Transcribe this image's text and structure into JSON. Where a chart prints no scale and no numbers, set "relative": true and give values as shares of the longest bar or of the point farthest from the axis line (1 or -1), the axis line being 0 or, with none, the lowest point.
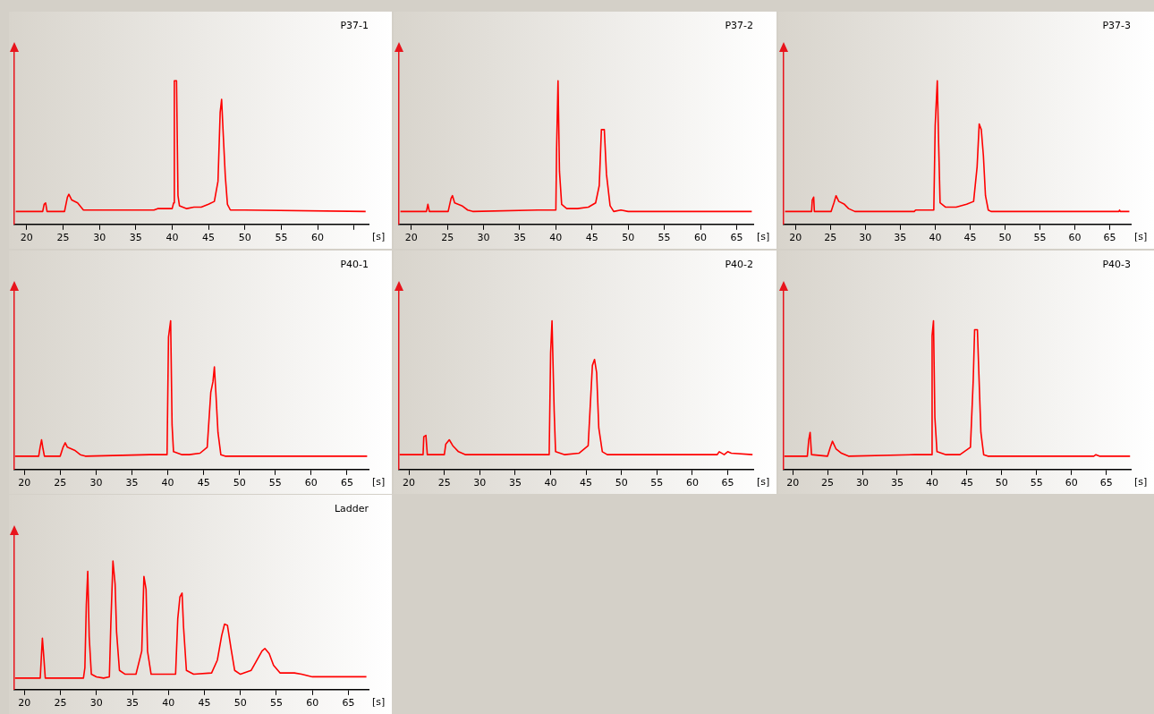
{
  "chart_data": [
    {
      "type": "line",
      "title": "P37-1",
      "xlabel": "[s]",
      "relative": true,
      "color": "#ff0000",
      "xlim": [
        18.3,
        67
      ],
      "xticks": [
        20,
        25,
        30,
        35,
        40,
        45,
        50,
        55,
        60,
        {
          "value": 65,
          "label": null
        }
      ],
      "x": [
        18.5,
        22.2,
        22.4,
        22.6,
        22.8,
        25.2,
        25.6,
        25.8,
        26.2,
        27,
        27.8,
        28.5,
        35.5,
        37.5,
        38,
        40,
        40.2,
        40.3,
        40.6,
        40.8,
        41,
        42,
        43,
        44,
        45,
        45.8,
        46.3,
        46.6,
        46.8,
        47,
        47.3,
        47.6,
        48,
        50,
        66.6
      ],
      "values": [
        0.09,
        0.09,
        0.14,
        0.15,
        0.09,
        0.09,
        0.19,
        0.21,
        0.17,
        0.15,
        0.1,
        0.1,
        0.1,
        0.1,
        0.11,
        0.11,
        0.15,
        1,
        1,
        0.2,
        0.13,
        0.11,
        0.12,
        0.12,
        0.14,
        0.16,
        0.3,
        0.78,
        0.87,
        0.65,
        0.34,
        0.14,
        0.1,
        0.1,
        0.09
      ]
    },
    {
      "type": "line",
      "title": "P37-2",
      "xlabel": "[s]",
      "relative": true,
      "color": "#ff0000",
      "xlim": [
        18.3,
        67.3
      ],
      "xticks": [
        20,
        25,
        30,
        35,
        40,
        45,
        50,
        55,
        60,
        65
      ],
      "x": [
        18.5,
        22.1,
        22.3,
        22.5,
        25.1,
        25.5,
        25.7,
        26,
        27,
        27.8,
        28.5,
        37.5,
        38.5,
        40,
        40.1,
        40.3,
        40.5,
        40.8,
        41.5,
        43,
        44.5,
        45.5,
        46,
        46.3,
        46.7,
        47,
        47.5,
        48,
        49,
        50,
        67.1
      ],
      "values": [
        0.09,
        0.09,
        0.14,
        0.09,
        0.09,
        0.18,
        0.2,
        0.15,
        0.13,
        0.1,
        0.09,
        0.1,
        0.1,
        0.1,
        0.52,
        1,
        0.37,
        0.14,
        0.11,
        0.11,
        0.12,
        0.15,
        0.27,
        0.66,
        0.66,
        0.35,
        0.13,
        0.09,
        0.1,
        0.09,
        0.09
      ]
    },
    {
      "type": "line",
      "title": "P37-3",
      "xlabel": "[s]",
      "relative": true,
      "color": "#ff0000",
      "xlim": [
        18.3,
        68
      ],
      "xticks": [
        20,
        25,
        30,
        35,
        40,
        45,
        50,
        55,
        60,
        65
      ],
      "x": [
        18.5,
        22.3,
        22.4,
        22.6,
        22.7,
        25.1,
        25.5,
        25.8,
        26.2,
        27,
        27.6,
        28.5,
        37,
        37.2,
        39.8,
        40,
        40.3,
        40.5,
        40.7,
        41.5,
        43,
        44.5,
        45.5,
        46,
        46.3,
        46.6,
        46.9,
        47.2,
        47.6,
        48,
        66.3,
        66.4,
        66.5,
        67.8
      ],
      "values": [
        0.09,
        0.09,
        0.17,
        0.19,
        0.09,
        0.09,
        0.15,
        0.2,
        0.16,
        0.14,
        0.11,
        0.09,
        0.09,
        0.1,
        0.1,
        0.69,
        1,
        0.55,
        0.15,
        0.12,
        0.12,
        0.14,
        0.16,
        0.4,
        0.7,
        0.66,
        0.48,
        0.2,
        0.1,
        0.09,
        0.09,
        0.1,
        0.09,
        0.09
      ]
    },
    {
      "type": "line",
      "title": "P40-1",
      "xlabel": "[s]",
      "relative": true,
      "color": "#ff0000",
      "xlim": [
        18.6,
        68
      ],
      "xticks": [
        20,
        25,
        30,
        35,
        40,
        45,
        50,
        55,
        60,
        65
      ],
      "x": [
        18.7,
        22,
        22.2,
        22.4,
        22.6,
        22.8,
        25,
        25.4,
        25.7,
        26,
        27,
        27.8,
        28.5,
        37.5,
        39.9,
        40.1,
        40.4,
        40.6,
        40.8,
        42,
        43,
        44.5,
        45.5,
        46,
        46.3,
        46.5,
        46.7,
        47,
        47.4,
        48,
        67.8
      ],
      "values": [
        0.09,
        0.09,
        0.15,
        0.2,
        0.14,
        0.09,
        0.09,
        0.15,
        0.18,
        0.15,
        0.13,
        0.1,
        0.09,
        0.1,
        0.1,
        0.89,
        1,
        0.3,
        0.12,
        0.1,
        0.1,
        0.11,
        0.15,
        0.52,
        0.59,
        0.69,
        0.52,
        0.25,
        0.1,
        0.09,
        0.09
      ]
    },
    {
      "type": "line",
      "title": "P40-2",
      "xlabel": "[s]",
      "relative": true,
      "color": "#ff0000",
      "xlim": [
        18.6,
        68.6
      ],
      "xticks": [
        20,
        25,
        30,
        35,
        40,
        45,
        50,
        55,
        60,
        65
      ],
      "x": [
        18.7,
        22,
        22.1,
        22.4,
        22.6,
        25,
        25.2,
        25.7,
        26.2,
        27,
        28,
        36.5,
        39.8,
        40,
        40.2,
        40.5,
        40.7,
        42,
        44,
        45.3,
        45.9,
        46.2,
        46.5,
        46.8,
        47.3,
        48,
        63.5,
        63.8,
        64.5,
        65,
        65.5,
        68.5
      ],
      "values": [
        0.1,
        0.1,
        0.22,
        0.23,
        0.1,
        0.1,
        0.17,
        0.2,
        0.16,
        0.12,
        0.1,
        0.1,
        0.1,
        0.78,
        1,
        0.4,
        0.12,
        0.1,
        0.11,
        0.16,
        0.7,
        0.74,
        0.65,
        0.28,
        0.12,
        0.1,
        0.1,
        0.12,
        0.1,
        0.12,
        0.11,
        0.1
      ]
    },
    {
      "type": "line",
      "title": "P40-3",
      "xlabel": "[s]",
      "relative": true,
      "color": "#ff0000",
      "xlim": [
        18.7,
        68.5
      ],
      "xticks": [
        20,
        25,
        30,
        35,
        40,
        45,
        50,
        55,
        60,
        65
      ],
      "x": [
        18.8,
        22.1,
        22.3,
        22.5,
        22.7,
        25,
        25.4,
        25.7,
        26.2,
        27,
        28,
        37.5,
        39.9,
        40,
        40.2,
        40.4,
        40.7,
        42,
        44,
        45.5,
        45.9,
        46.1,
        46.5,
        46.7,
        47,
        47.4,
        48,
        63.2,
        63.5,
        64,
        68.4
      ],
      "values": [
        0.09,
        0.09,
        0.2,
        0.25,
        0.1,
        0.09,
        0.15,
        0.19,
        0.14,
        0.11,
        0.09,
        0.1,
        0.1,
        0.9,
        1,
        0.35,
        0.12,
        0.1,
        0.1,
        0.15,
        0.6,
        0.94,
        0.94,
        0.66,
        0.25,
        0.1,
        0.09,
        0.09,
        0.1,
        0.09,
        0.09
      ]
    },
    {
      "type": "line",
      "title": "Ladder",
      "xlabel": "[s]",
      "relative": true,
      "color": "#ff0000",
      "xlim": [
        18.6,
        67.8
      ],
      "xticks": [
        20,
        25,
        30,
        35,
        40,
        45,
        50,
        55,
        60,
        65
      ],
      "x": [
        18.7,
        22.2,
        22.4,
        22.5,
        22.7,
        22.9,
        28.2,
        28.4,
        28.6,
        28.8,
        29,
        29.3,
        30,
        31,
        31.8,
        32,
        32.3,
        32.6,
        32.8,
        33.2,
        34,
        35.5,
        36.3,
        36.6,
        36.9,
        37.1,
        37.6,
        41,
        41.3,
        41.6,
        41.9,
        42.1,
        42.5,
        43.5,
        46,
        46.8,
        47.4,
        47.8,
        48.2,
        48.7,
        49.2,
        50,
        51.5,
        52.2,
        53,
        53.4,
        54,
        54.6,
        55.5,
        57.5,
        58.5,
        60,
        67.5
      ],
      "values": [
        0.09,
        0.09,
        0.3,
        0.4,
        0.25,
        0.09,
        0.09,
        0.17,
        0.66,
        0.92,
        0.41,
        0.12,
        0.1,
        0.09,
        0.1,
        0.5,
        1,
        0.82,
        0.45,
        0.15,
        0.12,
        0.12,
        0.3,
        0.88,
        0.78,
        0.3,
        0.12,
        0.12,
        0.55,
        0.72,
        0.75,
        0.49,
        0.15,
        0.12,
        0.13,
        0.23,
        0.42,
        0.51,
        0.5,
        0.32,
        0.15,
        0.12,
        0.15,
        0.22,
        0.3,
        0.32,
        0.28,
        0.19,
        0.13,
        0.13,
        0.12,
        0.1,
        0.1
      ]
    }
  ]
}
